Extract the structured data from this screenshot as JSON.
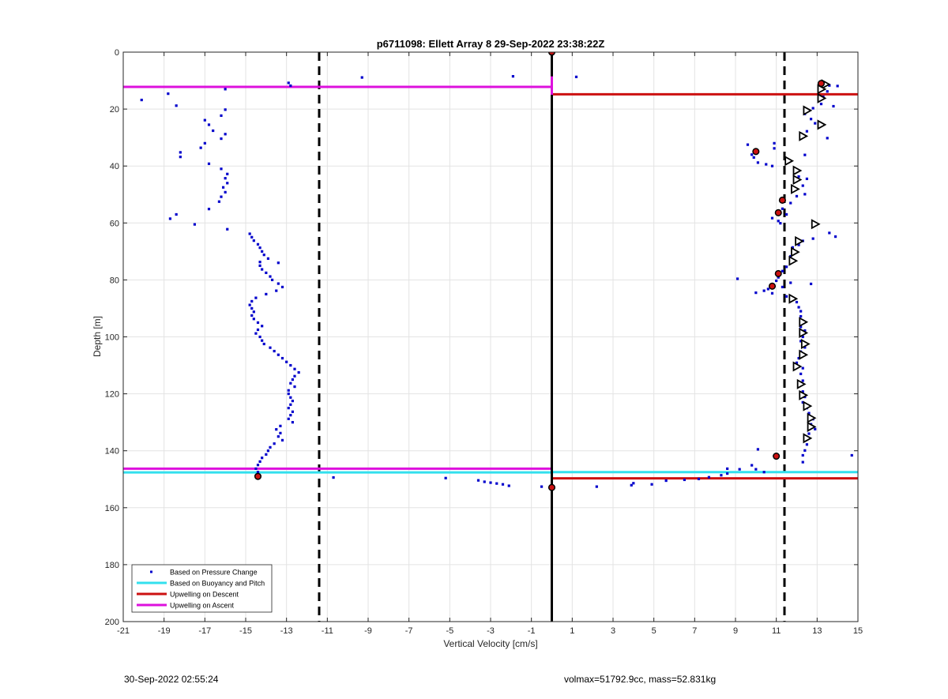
{
  "chart_data": {
    "type": "scatter",
    "title": "p6711098: Ellett Array 8 29-Sep-2022 23:38:22Z",
    "xlabel": "Vertical Velocity [cm/s]",
    "ylabel": "Depth [m]",
    "xlim": [
      -21,
      15
    ],
    "ylim": [
      0,
      200
    ],
    "y_reversed": true,
    "grid": true,
    "xticks": [
      -21,
      -19,
      -17,
      -15,
      -13,
      -11,
      -9,
      -7,
      -5,
      -3,
      -1,
      1,
      3,
      5,
      7,
      9,
      11,
      13,
      15
    ],
    "xtick_labels": [
      "-21",
      "-19",
      "-17",
      "-15",
      "-13",
      "-11",
      "-9",
      "-7",
      "-5",
      "-3",
      "-1",
      "1",
      "3",
      "5",
      "7",
      "9",
      "11",
      "13",
      "15"
    ],
    "yticks": [
      0,
      20,
      40,
      60,
      80,
      100,
      120,
      140,
      160,
      180,
      200
    ],
    "ytick_labels": [
      "0",
      "20",
      "40",
      "60",
      "80",
      "100",
      "120",
      "140",
      "160",
      "180",
      "200"
    ],
    "legend_position": "bottom-left",
    "legend": [
      {
        "label": "Based on Pressure Change",
        "style": "dot",
        "color": "#0000cc"
      },
      {
        "label": "Based on Buoyancy and Pitch",
        "style": "line",
        "color": "#33e0ee"
      },
      {
        "label": "Upwelling on Descent",
        "style": "line",
        "color": "#cc1111"
      },
      {
        "label": "Upwelling on Ascent",
        "style": "line",
        "color": "#dd11dd"
      }
    ],
    "reference_lines": {
      "zero_x": 0,
      "dashed_x": [
        -11.4,
        11.4
      ]
    },
    "series": [
      {
        "name": "Based on Pressure Change",
        "color": "#0000cc",
        "points": [
          [
            -20.1,
            16.8
          ],
          [
            -18.8,
            14.6
          ],
          [
            -18.4,
            18.8
          ],
          [
            -16.0,
            13.0
          ],
          [
            -12.9,
            10.8
          ],
          [
            -12.8,
            11.8
          ],
          [
            -9.3,
            8.9
          ],
          [
            -1.9,
            8.5
          ],
          [
            1.2,
            8.7
          ],
          [
            -16.0,
            20.2
          ],
          [
            -16.2,
            22.3
          ],
          [
            -17.0,
            23.9
          ],
          [
            -16.8,
            25.5
          ],
          [
            -16.6,
            27.6
          ],
          [
            -16.0,
            28.8
          ],
          [
            -16.2,
            30.4
          ],
          [
            -17.0,
            32.0
          ],
          [
            -17.2,
            33.6
          ],
          [
            -18.2,
            35.2
          ],
          [
            -18.2,
            36.8
          ],
          [
            -16.8,
            39.2
          ],
          [
            -16.2,
            41.0
          ],
          [
            -15.9,
            42.8
          ],
          [
            -16.0,
            44.3
          ],
          [
            -15.9,
            46.0
          ],
          [
            -16.1,
            47.5
          ],
          [
            -16.0,
            49.2
          ],
          [
            -16.2,
            50.8
          ],
          [
            -16.3,
            52.5
          ],
          [
            -16.8,
            55.1
          ],
          [
            -18.4,
            57.0
          ],
          [
            -18.7,
            58.5
          ],
          [
            -17.5,
            60.5
          ],
          [
            -15.9,
            62.2
          ],
          [
            -14.8,
            63.8
          ],
          [
            -14.7,
            65.0
          ],
          [
            -14.6,
            66.2
          ],
          [
            -14.4,
            67.5
          ],
          [
            -14.3,
            68.7
          ],
          [
            -14.2,
            70.0
          ],
          [
            -14.1,
            71.2
          ],
          [
            -13.9,
            72.5
          ],
          [
            -14.3,
            73.7
          ],
          [
            -13.4,
            74.0
          ],
          [
            -14.3,
            75.0
          ],
          [
            -14.2,
            76.3
          ],
          [
            -14.0,
            77.5
          ],
          [
            -13.8,
            78.8
          ],
          [
            -13.7,
            80.0
          ],
          [
            -13.4,
            81.3
          ],
          [
            -13.2,
            82.5
          ],
          [
            -13.5,
            83.8
          ],
          [
            -14.0,
            85.0
          ],
          [
            -14.5,
            86.3
          ],
          [
            -14.7,
            87.5
          ],
          [
            -14.8,
            88.8
          ],
          [
            -14.7,
            90.0
          ],
          [
            -14.6,
            91.2
          ],
          [
            -14.7,
            92.5
          ],
          [
            -14.6,
            93.7
          ],
          [
            -14.4,
            95.0
          ],
          [
            -14.2,
            96.2
          ],
          [
            -14.4,
            97.5
          ],
          [
            -14.5,
            98.8
          ],
          [
            -14.3,
            100.0
          ],
          [
            -14.2,
            101.3
          ],
          [
            -14.1,
            102.5
          ],
          [
            -13.8,
            103.8
          ],
          [
            -13.6,
            105.0
          ],
          [
            -13.4,
            106.3
          ],
          [
            -13.2,
            107.5
          ],
          [
            -13.0,
            108.8
          ],
          [
            -12.8,
            110.0
          ],
          [
            -12.6,
            111.3
          ],
          [
            -12.4,
            112.5
          ],
          [
            -12.6,
            113.8
          ],
          [
            -12.7,
            115.0
          ],
          [
            -12.8,
            116.3
          ],
          [
            -12.6,
            117.5
          ],
          [
            -12.9,
            118.8
          ],
          [
            -12.9,
            120.0
          ],
          [
            -12.8,
            121.3
          ],
          [
            -12.7,
            122.5
          ],
          [
            -12.8,
            123.8
          ],
          [
            -12.9,
            125.0
          ],
          [
            -12.7,
            126.3
          ],
          [
            -12.8,
            127.5
          ],
          [
            -12.9,
            128.8
          ],
          [
            -12.7,
            130.0
          ],
          [
            -13.3,
            131.3
          ],
          [
            -13.5,
            132.5
          ],
          [
            -13.3,
            133.8
          ],
          [
            -13.4,
            135.0
          ],
          [
            -13.2,
            136.3
          ],
          [
            -13.6,
            137.5
          ],
          [
            -13.8,
            138.8
          ],
          [
            -13.9,
            140.0
          ],
          [
            -14.0,
            141.3
          ],
          [
            -14.2,
            142.5
          ],
          [
            -14.3,
            143.8
          ],
          [
            -14.4,
            145.0
          ],
          [
            -14.5,
            146.3
          ],
          [
            -14.4,
            147.5
          ],
          [
            -14.5,
            148.8
          ],
          [
            -10.7,
            149.4
          ],
          [
            -5.2,
            149.6
          ],
          [
            -3.6,
            150.4
          ],
          [
            -3.3,
            150.9
          ],
          [
            -3.0,
            151.2
          ],
          [
            -2.7,
            151.5
          ],
          [
            -2.4,
            151.8
          ],
          [
            -2.1,
            152.3
          ],
          [
            -0.5,
            152.6
          ],
          [
            2.2,
            152.6
          ],
          [
            3.9,
            152.1
          ],
          [
            4.0,
            151.4
          ],
          [
            4.9,
            151.8
          ],
          [
            5.6,
            150.5
          ],
          [
            6.5,
            150.2
          ],
          [
            7.2,
            149.9
          ],
          [
            7.7,
            149.3
          ],
          [
            8.3,
            148.6
          ],
          [
            8.6,
            148.0
          ],
          [
            8.6,
            146.3
          ],
          [
            9.2,
            146.5
          ],
          [
            9.8,
            145.1
          ],
          [
            10.0,
            146.5
          ],
          [
            10.4,
            147.5
          ],
          [
            10.1,
            139.5
          ],
          [
            14.7,
            141.6
          ],
          [
            9.9,
            37.0
          ],
          [
            9.8,
            36.0
          ],
          [
            10.1,
            35.0
          ],
          [
            9.6,
            32.5
          ],
          [
            10.9,
            32.0
          ],
          [
            10.9,
            33.8
          ],
          [
            10.1,
            38.8
          ],
          [
            10.5,
            39.4
          ],
          [
            10.8,
            40.0
          ],
          [
            12.4,
            21.7
          ],
          [
            12.7,
            23.5
          ],
          [
            12.8,
            19.7
          ],
          [
            13.2,
            18.2
          ],
          [
            13.8,
            19.0
          ],
          [
            13.3,
            15.7
          ],
          [
            13.5,
            13.8
          ],
          [
            13.6,
            11.7
          ],
          [
            14.0,
            11.9
          ],
          [
            13.5,
            30.2
          ],
          [
            12.5,
            27.8
          ],
          [
            12.9,
            25.0
          ],
          [
            12.2,
            28.6
          ],
          [
            12.4,
            36.1
          ],
          [
            12.1,
            43.7
          ],
          [
            12.5,
            44.5
          ],
          [
            12.3,
            46.9
          ],
          [
            12.4,
            49.9
          ],
          [
            12.0,
            50.6
          ],
          [
            11.7,
            53.0
          ],
          [
            11.3,
            55.0
          ],
          [
            11.5,
            57.0
          ],
          [
            11.1,
            59.3
          ],
          [
            10.8,
            58.3
          ],
          [
            11.2,
            60.1
          ],
          [
            13.6,
            63.5
          ],
          [
            13.9,
            64.8
          ],
          [
            12.8,
            65.5
          ],
          [
            12.3,
            66.3
          ],
          [
            12.1,
            67.7
          ],
          [
            11.8,
            68.6
          ],
          [
            11.7,
            71.7
          ],
          [
            11.8,
            73.5
          ],
          [
            11.5,
            75.4
          ],
          [
            11.3,
            76.9
          ],
          [
            11.1,
            79.1
          ],
          [
            9.1,
            79.6
          ],
          [
            11.0,
            80.3
          ],
          [
            11.7,
            81.0
          ],
          [
            12.7,
            81.4
          ],
          [
            11.3,
            82.5
          ],
          [
            10.6,
            83.2
          ],
          [
            10.4,
            83.8
          ],
          [
            10.0,
            84.5
          ],
          [
            10.8,
            84.7
          ],
          [
            11.5,
            85.8
          ],
          [
            12.0,
            87.8
          ],
          [
            12.1,
            89.6
          ],
          [
            12.2,
            91.0
          ],
          [
            12.2,
            92.8
          ],
          [
            12.3,
            94.6
          ],
          [
            12.2,
            96.5
          ],
          [
            12.4,
            97.8
          ],
          [
            12.3,
            100.0
          ],
          [
            12.2,
            101.5
          ],
          [
            12.4,
            103.7
          ],
          [
            12.2,
            105.2
          ],
          [
            12.1,
            107.5
          ],
          [
            12.0,
            109.1
          ],
          [
            12.3,
            111.0
          ],
          [
            12.2,
            113.0
          ],
          [
            12.3,
            115.4
          ],
          [
            12.1,
            117.0
          ],
          [
            12.3,
            119.2
          ],
          [
            12.4,
            121.1
          ],
          [
            12.3,
            123.0
          ],
          [
            12.5,
            125.0
          ],
          [
            12.6,
            126.8
          ],
          [
            12.8,
            128.9
          ],
          [
            12.7,
            130.7
          ],
          [
            12.9,
            132.4
          ],
          [
            12.6,
            134.0
          ],
          [
            12.5,
            135.8
          ],
          [
            12.5,
            137.8
          ],
          [
            12.4,
            139.9
          ],
          [
            12.3,
            141.6
          ],
          [
            12.3,
            144.0
          ]
        ]
      },
      {
        "name": "Based on Buoyancy and Pitch",
        "color": "#33e0ee",
        "segments": [
          {
            "x": [
              -21,
              0
            ],
            "y": 147.6
          },
          {
            "x": [
              0,
              15
            ],
            "y": 147.5
          }
        ]
      },
      {
        "name": "Upwelling on Descent",
        "color": "#cc1111",
        "segments": [
          {
            "x": [
              0,
              15
            ],
            "y": 14.8
          },
          {
            "x": [
              0,
              15
            ],
            "y": 149.7
          }
        ]
      },
      {
        "name": "Upwelling on Ascent",
        "color": "#dd11dd",
        "segments": [
          {
            "x": [
              -21,
              0
            ],
            "y": 12.2
          },
          {
            "x": [
              -21,
              0
            ],
            "y": 146.3
          }
        ],
        "vertical": {
          "x": 0,
          "y": [
            8.5,
            15.0
          ]
        }
      }
    ],
    "markers_right_triangle": [
      [
        13.4,
        11.3
      ],
      [
        13.2,
        13.0
      ],
      [
        13.2,
        16.2
      ],
      [
        12.5,
        20.5
      ],
      [
        13.2,
        25.5
      ],
      [
        12.3,
        29.5
      ],
      [
        11.6,
        38.2
      ],
      [
        12.0,
        41.6
      ],
      [
        12.0,
        44.8
      ],
      [
        11.9,
        48.1
      ],
      [
        12.9,
        60.4
      ],
      [
        12.1,
        66.4
      ],
      [
        11.9,
        70.2
      ],
      [
        11.8,
        73.3
      ],
      [
        11.8,
        86.6
      ],
      [
        12.3,
        94.8
      ],
      [
        12.3,
        98.6
      ],
      [
        12.4,
        102.5
      ],
      [
        12.3,
        106.3
      ],
      [
        12.0,
        110.4
      ],
      [
        12.2,
        116.6
      ],
      [
        12.3,
        120.5
      ],
      [
        12.5,
        124.3
      ],
      [
        12.7,
        128.5
      ],
      [
        12.7,
        131.6
      ],
      [
        12.5,
        135.6
      ]
    ],
    "markers_red_filled": [
      [
        0.0,
        0.0
      ],
      [
        13.2,
        11.0
      ],
      [
        10.0,
        34.9
      ],
      [
        11.3,
        52.0
      ],
      [
        11.1,
        56.4
      ],
      [
        11.1,
        77.8
      ],
      [
        10.8,
        82.2
      ],
      [
        11.0,
        141.9
      ],
      [
        -14.4,
        149.0
      ],
      [
        0.0,
        152.9
      ]
    ]
  },
  "footer": {
    "left": "30-Sep-2022 02:55:24",
    "right": "volmax=51792.9cc, mass=52.831kg"
  }
}
